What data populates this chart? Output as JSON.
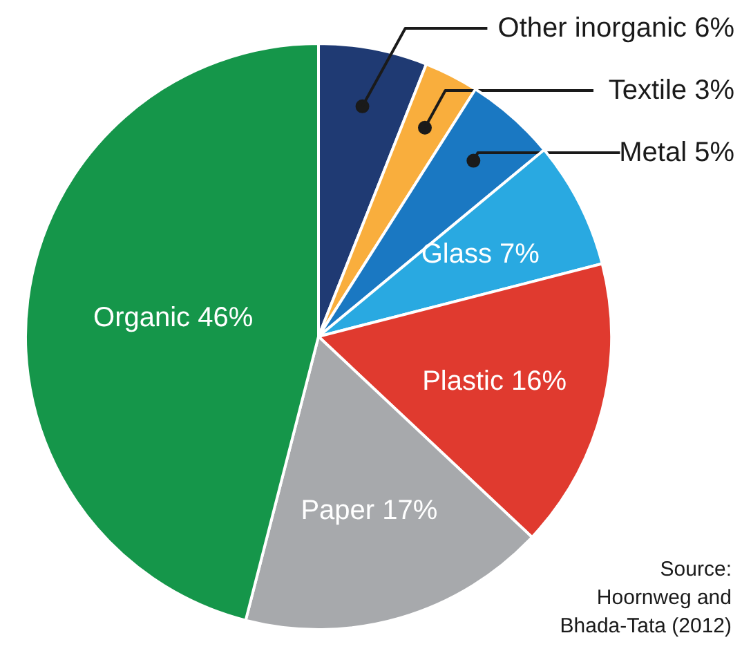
{
  "chart_data": {
    "type": "pie",
    "categories": [
      "Other inorganic",
      "Textile",
      "Metal",
      "Glass",
      "Plastic",
      "Paper",
      "Organic"
    ],
    "values": [
      6,
      3,
      5,
      7,
      16,
      17,
      46
    ],
    "value_labels": [
      "6%",
      "3%",
      "5%",
      "7%",
      "16%",
      "17%",
      "46%"
    ],
    "colors": [
      "#1f3a73",
      "#f9ae3d",
      "#1a78c2",
      "#29a9e1",
      "#e03a2f",
      "#a7a9ac",
      "#15964a"
    ],
    "annotations": [
      "Source:\nHoornweg and\nBhada-Tata (2012)"
    ]
  }
}
